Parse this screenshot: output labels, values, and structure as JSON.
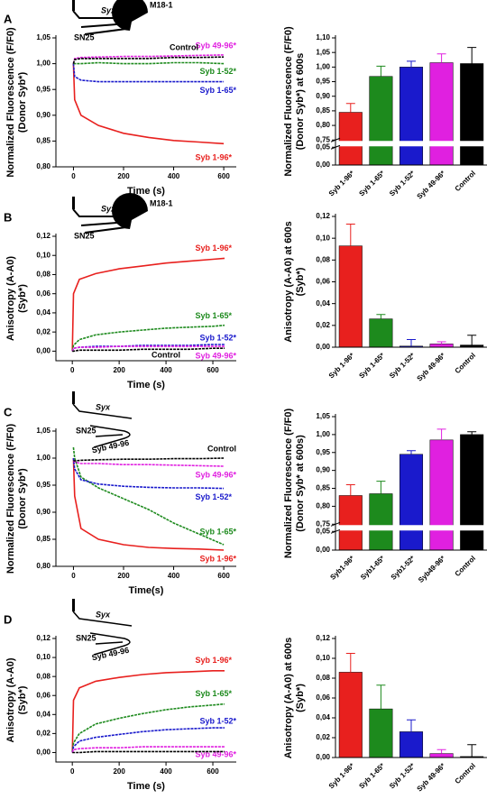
{
  "chart_data": [
    {
      "type": "line",
      "panel": "A",
      "diagram_labels": [
        "Syx",
        "M18-1",
        "SN25"
      ],
      "xlabel": "Time (s)",
      "ylabel": [
        "Normalized Fluorescence (F/F0)",
        "(Donor Syb*)"
      ],
      "x": [
        0,
        5,
        30,
        100,
        200,
        300,
        400,
        500,
        600
      ],
      "xlim": [
        -70,
        650
      ],
      "xticks": [
        0,
        200,
        400,
        600
      ],
      "ylim": [
        0.8,
        1.05
      ],
      "yticks": [
        {
          "value": 0.8,
          "label": "0,80"
        },
        {
          "value": 0.85,
          "label": "0,85"
        },
        {
          "value": 0.9,
          "label": "0,90"
        },
        {
          "value": 0.95,
          "label": "0,95"
        },
        {
          "value": 1.0,
          "label": "1,00"
        },
        {
          "value": 1.05,
          "label": "1,05"
        }
      ],
      "series": [
        {
          "name": "Syb 1-96*",
          "color": "#e8201e",
          "values": [
            1.0,
            0.93,
            0.9,
            0.88,
            0.865,
            0.857,
            0.851,
            0.848,
            0.845
          ]
        },
        {
          "name": "Syb 1-65*",
          "color": "#1a1acc",
          "values": [
            1.0,
            0.975,
            0.968,
            0.965,
            0.965,
            0.965,
            0.965,
            0.965,
            0.965
          ]
        },
        {
          "name": "Syb 1-52*",
          "color": "#1d8a1d",
          "values": [
            1.0,
            1.0,
            1.0,
            1.002,
            1.0,
            1.0,
            1.002,
            1.002,
            1.0
          ]
        },
        {
          "name": "Syb 49-96*",
          "color": "#e020e0",
          "values": [
            1.0,
            1.01,
            1.012,
            1.013,
            1.014,
            1.014,
            1.015,
            1.016,
            1.017
          ]
        },
        {
          "name": "Control",
          "color": "#000000",
          "values": [
            1.0,
            1.008,
            1.01,
            1.01,
            1.01,
            1.01,
            1.012,
            1.012,
            1.013
          ]
        }
      ]
    },
    {
      "type": "bar",
      "ylabel": [
        "Normalized Fluorescence (F/F0)",
        "(Donor Syb*) at 600s"
      ],
      "categories": [
        "Syb 1-96*",
        "Syb 1-65*",
        "Syb 1-52*",
        "Syb 49-96*",
        "Control"
      ],
      "colors": [
        "#e8201e",
        "#1d8a1d",
        "#1a1acc",
        "#e020e0",
        "#000000"
      ],
      "values": [
        0.845,
        0.968,
        1.0,
        1.015,
        1.012
      ],
      "errors": [
        0.03,
        0.035,
        0.02,
        0.03,
        0.055
      ],
      "ylim": [
        0,
        1.1
      ],
      "ybreak": [
        0.05,
        0.75
      ],
      "yticks": [
        {
          "value": 0,
          "label": "0,00"
        },
        {
          "value": 0.05,
          "label": "0,05"
        },
        {
          "value": 0.75,
          "label": "0,75"
        },
        {
          "value": 0.8,
          "label": "0,80"
        },
        {
          "value": 0.85,
          "label": "0,85"
        },
        {
          "value": 0.9,
          "label": "0,90"
        },
        {
          "value": 0.95,
          "label": "0,95"
        },
        {
          "value": 1.0,
          "label": "1,00"
        },
        {
          "value": 1.05,
          "label": "1,05"
        },
        {
          "value": 1.1,
          "label": "1,10"
        }
      ]
    },
    {
      "type": "line",
      "panel": "B",
      "diagram_labels": [
        "Syx",
        "M18-1",
        "SN25"
      ],
      "xlabel": "Time (s)",
      "ylabel": [
        "Anisotropy (A-A0)",
        "(Syb*)"
      ],
      "x": [
        0,
        5,
        30,
        100,
        200,
        300,
        400,
        500,
        600,
        650
      ],
      "xlim": [
        -70,
        700
      ],
      "xticks": [
        0,
        200,
        400,
        600
      ],
      "ylim": [
        -0.01,
        0.12
      ],
      "yticks": [
        {
          "value": 0,
          "label": "0,00"
        },
        {
          "value": 0.02,
          "label": "0,02"
        },
        {
          "value": 0.04,
          "label": "0,04"
        },
        {
          "value": 0.06,
          "label": "0,06"
        },
        {
          "value": 0.08,
          "label": "0,08"
        },
        {
          "value": 0.1,
          "label": "0,10"
        },
        {
          "value": 0.12,
          "label": "0,12"
        }
      ],
      "series": [
        {
          "name": "Syb 1-96*",
          "color": "#e8201e",
          "values": [
            0,
            0.06,
            0.075,
            0.081,
            0.086,
            0.089,
            0.092,
            0.094,
            0.096,
            0.097
          ]
        },
        {
          "name": "Syb 1-65*",
          "color": "#1d8a1d",
          "values": [
            0,
            0.006,
            0.012,
            0.017,
            0.02,
            0.022,
            0.024,
            0.025,
            0.026,
            0.027
          ]
        },
        {
          "name": "Syb 1-52*",
          "color": "#1a1acc",
          "values": [
            0,
            0.003,
            0.004,
            0.005,
            0.005,
            0.006,
            0.006,
            0.006,
            0.007,
            0.007
          ]
        },
        {
          "name": "Syb 49-96*",
          "color": "#e020e0",
          "values": [
            0,
            0.003,
            0.004,
            0.004,
            0.005,
            0.005,
            0.005,
            0.005,
            0.005,
            0.005
          ]
        },
        {
          "name": "Control",
          "color": "#000000",
          "values": [
            0,
            0,
            0.001,
            0.001,
            0.001,
            0.002,
            0.002,
            0.002,
            0.003,
            0.003
          ]
        }
      ]
    },
    {
      "type": "bar",
      "ylabel": [
        "Anisotropy (A-A0) at 600s",
        "(Syb*)"
      ],
      "categories": [
        "Syb 1-96*",
        "Syb 1-65*",
        "Syb 1-52*",
        "Syb 49-96*",
        "Control"
      ],
      "colors": [
        "#e8201e",
        "#1d8a1d",
        "#1a1acc",
        "#e020e0",
        "#000000"
      ],
      "values": [
        0.093,
        0.026,
        0.001,
        0.003,
        0.002
      ],
      "errors": [
        0.02,
        0.004,
        0.006,
        0.002,
        0.009
      ],
      "ylim": [
        0,
        0.12
      ],
      "yticks": [
        {
          "value": 0,
          "label": "0,00"
        },
        {
          "value": 0.02,
          "label": "0,02"
        },
        {
          "value": 0.04,
          "label": "0,04"
        },
        {
          "value": 0.06,
          "label": "0,06"
        },
        {
          "value": 0.08,
          "label": "0,08"
        },
        {
          "value": 0.1,
          "label": "0,10"
        },
        {
          "value": 0.12,
          "label": "0,12"
        }
      ]
    },
    {
      "type": "line",
      "panel": "C",
      "diagram_labels": [
        "Syx",
        "SN25",
        "Syb 49-96"
      ],
      "xlabel": "Time(s)",
      "ylabel": [
        "Normalized Fluorescence (F/F0)",
        "(Donor Syb*)"
      ],
      "x": [
        0,
        5,
        30,
        100,
        200,
        300,
        400,
        500,
        600
      ],
      "xlim": [
        -70,
        650
      ],
      "xticks": [
        0,
        200,
        400,
        600
      ],
      "ylim": [
        0.8,
        1.05
      ],
      "yticks": [
        {
          "value": 0.8,
          "label": "0,80"
        },
        {
          "value": 0.85,
          "label": "0,85"
        },
        {
          "value": 0.9,
          "label": "0,90"
        },
        {
          "value": 0.95,
          "label": "0,95"
        },
        {
          "value": 1.0,
          "label": "1,00"
        },
        {
          "value": 1.05,
          "label": "1,05"
        }
      ],
      "series": [
        {
          "name": "Syb 1-96*",
          "color": "#e8201e",
          "values": [
            1.0,
            0.93,
            0.87,
            0.85,
            0.84,
            0.835,
            0.833,
            0.832,
            0.83
          ]
        },
        {
          "name": "Syb 1-65*",
          "color": "#1d8a1d",
          "values": [
            1.02,
            1.0,
            0.965,
            0.945,
            0.925,
            0.905,
            0.88,
            0.86,
            0.84
          ]
        },
        {
          "name": "Syb 1-52*",
          "color": "#1a1acc",
          "values": [
            1.0,
            0.98,
            0.96,
            0.952,
            0.948,
            0.946,
            0.945,
            0.945,
            0.944
          ]
        },
        {
          "name": "Syb 49-96*",
          "color": "#e020e0",
          "values": [
            0.995,
            0.993,
            0.99,
            0.99,
            0.988,
            0.988,
            0.987,
            0.986,
            0.985
          ]
        },
        {
          "name": "Control",
          "color": "#000000",
          "values": [
            0.995,
            0.995,
            0.996,
            0.997,
            0.998,
            0.998,
            0.999,
            0.999,
            1.0
          ]
        }
      ]
    },
    {
      "type": "bar",
      "ylabel": [
        "Normalized Fluorescence (F/F0)",
        "(Donor Syb* at 600s)"
      ],
      "categories": [
        "Syb1-96*",
        "Syb1-65*",
        "Syb1-52*",
        "Syb49-96*",
        "Control"
      ],
      "colors": [
        "#e8201e",
        "#1d8a1d",
        "#1a1acc",
        "#e020e0",
        "#000000"
      ],
      "values": [
        0.83,
        0.835,
        0.945,
        0.985,
        1.0
      ],
      "errors": [
        0.03,
        0.035,
        0.01,
        0.03,
        0.008
      ],
      "ylim": [
        0,
        1.05
      ],
      "ybreak": [
        0.05,
        0.75
      ],
      "yticks": [
        {
          "value": 0,
          "label": "0,00"
        },
        {
          "value": 0.05,
          "label": "0,05"
        },
        {
          "value": 0.75,
          "label": "0,75"
        },
        {
          "value": 0.8,
          "label": "0,80"
        },
        {
          "value": 0.85,
          "label": "0,85"
        },
        {
          "value": 0.9,
          "label": "0,90"
        },
        {
          "value": 0.95,
          "label": "0,95"
        },
        {
          "value": 1.0,
          "label": "1,00"
        },
        {
          "value": 1.05,
          "label": "1,05"
        }
      ]
    },
    {
      "type": "line",
      "panel": "D",
      "diagram_labels": [
        "Syx",
        "SN25",
        "Syb 49-96"
      ],
      "xlabel": "Time (s)",
      "ylabel": [
        "Anisotropy (A-A0)",
        "(Syb*)"
      ],
      "x": [
        0,
        5,
        30,
        100,
        200,
        300,
        400,
        500,
        600,
        650
      ],
      "xlim": [
        -70,
        700
      ],
      "xticks": [
        0,
        200,
        400,
        600
      ],
      "ylim": [
        -0.01,
        0.12
      ],
      "yticks": [
        {
          "value": 0,
          "label": "0,00"
        },
        {
          "value": 0.02,
          "label": "0,02"
        },
        {
          "value": 0.04,
          "label": "0,04"
        },
        {
          "value": 0.06,
          "label": "0,06"
        },
        {
          "value": 0.08,
          "label": "0,08"
        },
        {
          "value": 0.1,
          "label": "0,10"
        },
        {
          "value": 0.12,
          "label": "0,12"
        }
      ],
      "series": [
        {
          "name": "Syb 1-96*",
          "color": "#e8201e",
          "values": [
            0,
            0.055,
            0.068,
            0.075,
            0.079,
            0.082,
            0.084,
            0.085,
            0.086,
            0.086
          ]
        },
        {
          "name": "Syb 1-65*",
          "color": "#1d8a1d",
          "values": [
            0,
            0.01,
            0.02,
            0.03,
            0.036,
            0.041,
            0.045,
            0.048,
            0.05,
            0.051
          ]
        },
        {
          "name": "Syb 1-52*",
          "color": "#1a1acc",
          "values": [
            0,
            0.006,
            0.012,
            0.016,
            0.019,
            0.022,
            0.024,
            0.025,
            0.026,
            0.026
          ]
        },
        {
          "name": "Syb 49-96*",
          "color": "#e020e0",
          "values": [
            0,
            0.003,
            0.004,
            0.005,
            0.005,
            0.006,
            0.006,
            0.006,
            0.006,
            0.006
          ]
        },
        {
          "color": "#000000",
          "values": [
            0,
            0,
            0,
            0.001,
            0.001,
            0.001,
            0.001,
            0.001,
            0.001,
            0.001
          ]
        }
      ]
    },
    {
      "type": "bar",
      "ylabel": [
        "Anisotropy (A-A0) at 600s",
        "(Syb*)"
      ],
      "categories": [
        "Syb 1-96*",
        "Syb 1-65*",
        "Syb 1-52*",
        "Syb 49-96*",
        "Control"
      ],
      "colors": [
        "#e8201e",
        "#1d8a1d",
        "#1a1acc",
        "#e020e0",
        "#000000"
      ],
      "values": [
        0.086,
        0.049,
        0.026,
        0.004,
        0.001
      ],
      "errors": [
        0.019,
        0.024,
        0.012,
        0.004,
        0.012
      ],
      "ylim": [
        0,
        0.12
      ],
      "yticks": [
        {
          "value": 0,
          "label": "0,00"
        },
        {
          "value": 0.02,
          "label": "0,02"
        },
        {
          "value": 0.04,
          "label": "0,04"
        },
        {
          "value": 0.06,
          "label": "0,06"
        },
        {
          "value": 0.08,
          "label": "0,08"
        },
        {
          "value": 0.1,
          "label": "0,10"
        },
        {
          "value": 0.12,
          "label": "0,12"
        }
      ]
    }
  ]
}
